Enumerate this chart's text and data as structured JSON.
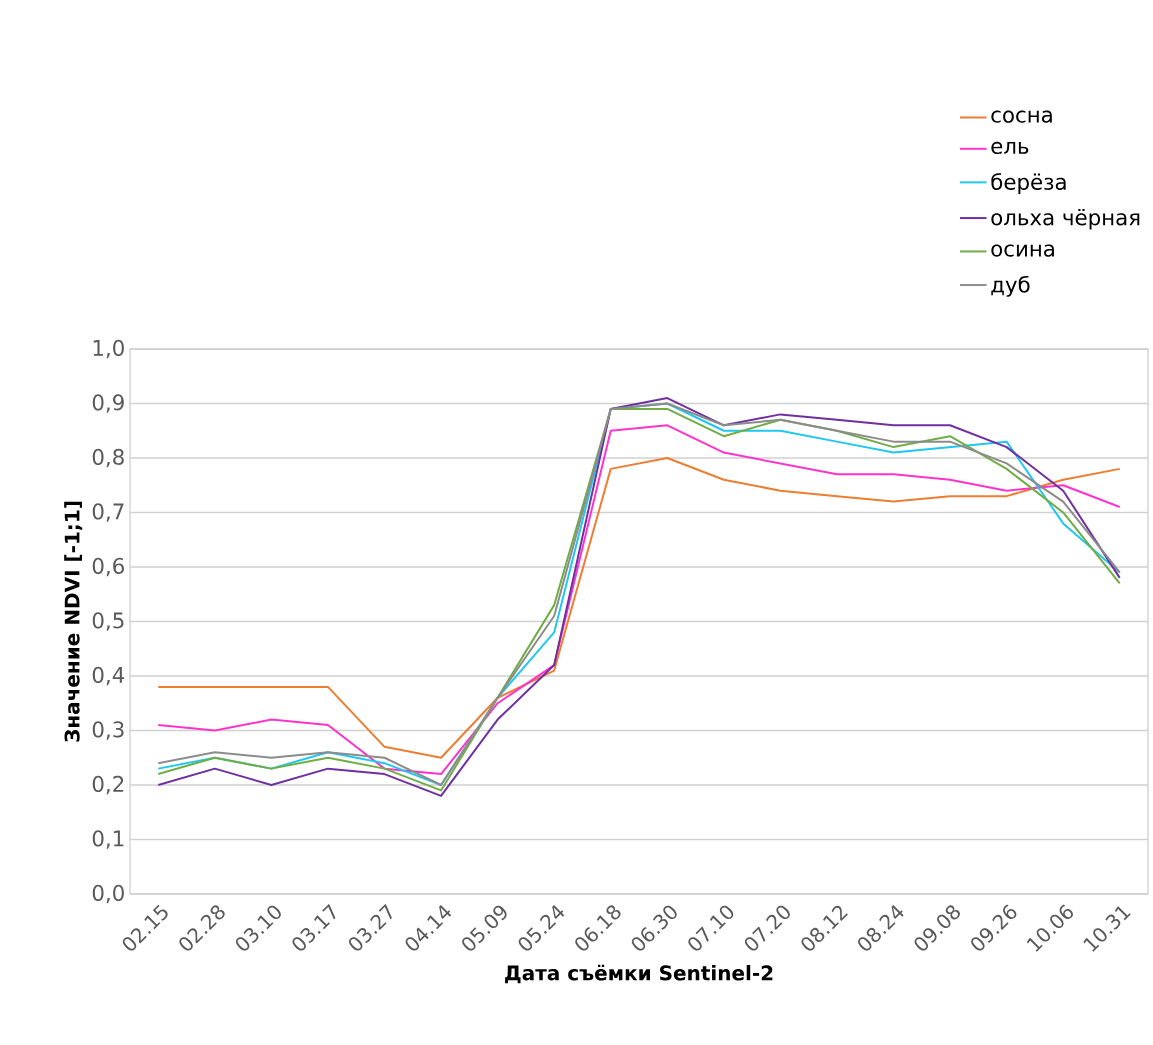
{
  "chart_data": {
    "type": "line",
    "xlabel": "Дата съёмки Sentinel-2",
    "ylabel": "Значение NDVI [-1;1]",
    "categories": [
      "02.15",
      "02.28",
      "03.10",
      "03.17",
      "03.27",
      "04.14",
      "05.09",
      "05.24",
      "06.18",
      "06.30",
      "07.10",
      "07.20",
      "08.12",
      "08.24",
      "09.08",
      "09.26",
      "10.06",
      "10.31"
    ],
    "series": [
      {
        "name": "сосна",
        "color": "#ed7d31",
        "values": [
          0.38,
          0.38,
          0.38,
          0.38,
          0.27,
          0.25,
          0.36,
          0.41,
          0.78,
          0.8,
          0.76,
          0.74,
          0.73,
          0.72,
          0.73,
          0.73,
          0.76,
          0.78
        ]
      },
      {
        "name": "ель",
        "color": "#ff33cc",
        "values": [
          0.31,
          0.3,
          0.32,
          0.31,
          0.23,
          0.22,
          0.35,
          0.42,
          0.85,
          0.86,
          0.81,
          0.79,
          0.77,
          0.77,
          0.76,
          0.74,
          0.75,
          0.71
        ]
      },
      {
        "name": "берёза",
        "color": "#1ec8f0",
        "values": [
          0.23,
          0.25,
          0.23,
          0.26,
          0.24,
          0.2,
          0.36,
          0.48,
          0.89,
          0.9,
          0.85,
          0.85,
          0.83,
          0.81,
          0.82,
          0.83,
          0.68,
          0.59
        ]
      },
      {
        "name": "ольха чёрная",
        "color": "#7030a0",
        "values": [
          0.2,
          0.23,
          0.2,
          0.23,
          0.22,
          0.18,
          0.32,
          0.42,
          0.89,
          0.91,
          0.86,
          0.88,
          0.87,
          0.86,
          0.86,
          0.82,
          0.74,
          0.58
        ]
      },
      {
        "name": "осина",
        "color": "#70ad47",
        "values": [
          0.22,
          0.25,
          0.23,
          0.25,
          0.23,
          0.19,
          0.36,
          0.53,
          0.89,
          0.89,
          0.84,
          0.87,
          0.85,
          0.82,
          0.84,
          0.78,
          0.7,
          0.57
        ]
      },
      {
        "name": "дуб",
        "color": "#8c8c8c",
        "values": [
          0.24,
          0.26,
          0.25,
          0.26,
          0.25,
          0.2,
          0.36,
          0.51,
          0.89,
          0.9,
          0.86,
          0.87,
          0.85,
          0.83,
          0.83,
          0.79,
          0.72,
          0.59
        ]
      }
    ],
    "ylim": [
      0,
      1
    ],
    "yticks": [
      {
        "value": 0,
        "label": "0,0"
      },
      {
        "value": 0.1,
        "label": "0,1"
      },
      {
        "value": 0.2,
        "label": "0,2"
      },
      {
        "value": 0.3,
        "label": "0,3"
      },
      {
        "value": 0.4,
        "label": "0,4"
      },
      {
        "value": 0.5,
        "label": "0,5"
      },
      {
        "value": 0.6,
        "label": "0,6"
      },
      {
        "value": 0.7,
        "label": "0,7"
      },
      {
        "value": 0.8,
        "label": "0,8"
      },
      {
        "value": 0.9,
        "label": "0,9"
      },
      {
        "value": 1,
        "label": "1,0"
      }
    ],
    "grid": "y",
    "legend": "top right"
  }
}
